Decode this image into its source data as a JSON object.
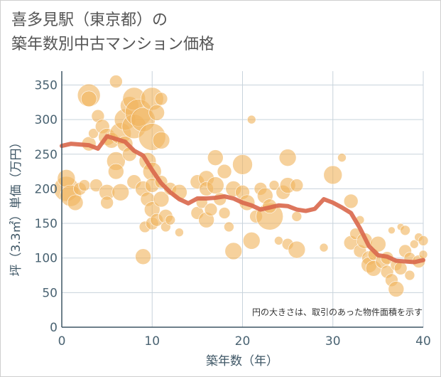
{
  "chart_data": {
    "type": "scatter",
    "title_line1": "喜多見駅（東京都）の",
    "title_line2": "築年数別中古マンション価格",
    "xlabel": "築年数（年）",
    "ylabel": "坪（3.3㎡）単価（万円）",
    "xlim": [
      0,
      40
    ],
    "ylim": [
      0,
      370
    ],
    "xticks": [
      "0",
      "10",
      "20",
      "30",
      "40"
    ],
    "yticks": [
      "0",
      "50",
      "100",
      "150",
      "200",
      "250",
      "300",
      "350"
    ],
    "xtick_values": [
      0,
      10,
      20,
      30,
      40
    ],
    "ytick_values": [
      0,
      50,
      100,
      150,
      200,
      250,
      300,
      350
    ],
    "annotation": "円の大きさは、取引のあった物件面積を示す",
    "grid": true,
    "colors": {
      "bubble": "#f0b55f",
      "trend": "#d9674b",
      "grid": "#c8d3dc",
      "axis": "#3e5665"
    },
    "series": [
      {
        "type": "scatter",
        "points": [
          {
            "x": 0.5,
            "y": 200,
            "s": 35
          },
          {
            "x": 0.5,
            "y": 215,
            "s": 25
          },
          {
            "x": 1,
            "y": 190,
            "s": 30
          },
          {
            "x": 1.5,
            "y": 180,
            "s": 22
          },
          {
            "x": 2,
            "y": 200,
            "s": 18
          },
          {
            "x": 2.5,
            "y": 205,
            "s": 16
          },
          {
            "x": 3,
            "y": 335,
            "s": 32
          },
          {
            "x": 3,
            "y": 330,
            "s": 22
          },
          {
            "x": 3,
            "y": 265,
            "s": 20
          },
          {
            "x": 3.5,
            "y": 280,
            "s": 14
          },
          {
            "x": 3.8,
            "y": 205,
            "s": 18
          },
          {
            "x": 4,
            "y": 305,
            "s": 18
          },
          {
            "x": 4.5,
            "y": 290,
            "s": 20
          },
          {
            "x": 5,
            "y": 275,
            "s": 24
          },
          {
            "x": 5,
            "y": 195,
            "s": 22
          },
          {
            "x": 5,
            "y": 180,
            "s": 18
          },
          {
            "x": 5.5,
            "y": 270,
            "s": 22
          },
          {
            "x": 6,
            "y": 355,
            "s": 18
          },
          {
            "x": 6,
            "y": 240,
            "s": 26
          },
          {
            "x": 6,
            "y": 225,
            "s": 22
          },
          {
            "x": 6.5,
            "y": 195,
            "s": 24
          },
          {
            "x": 6.5,
            "y": 280,
            "s": 30
          },
          {
            "x": 7,
            "y": 300,
            "s": 30
          },
          {
            "x": 7,
            "y": 265,
            "s": 22
          },
          {
            "x": 7.5,
            "y": 320,
            "s": 26
          },
          {
            "x": 7.5,
            "y": 250,
            "s": 20
          },
          {
            "x": 8,
            "y": 330,
            "s": 32
          },
          {
            "x": 8,
            "y": 290,
            "s": 34
          },
          {
            "x": 8,
            "y": 210,
            "s": 20
          },
          {
            "x": 8.5,
            "y": 310,
            "s": 38
          },
          {
            "x": 9,
            "y": 300,
            "s": 34
          },
          {
            "x": 9,
            "y": 200,
            "s": 22
          },
          {
            "x": 9,
            "y": 102,
            "s": 22
          },
          {
            "x": 9.2,
            "y": 145,
            "s": 16
          },
          {
            "x": 9.5,
            "y": 240,
            "s": 24
          },
          {
            "x": 9.5,
            "y": 185,
            "s": 20
          },
          {
            "x": 10,
            "y": 330,
            "s": 32
          },
          {
            "x": 10,
            "y": 275,
            "s": 38
          },
          {
            "x": 10,
            "y": 225,
            "s": 26
          },
          {
            "x": 10,
            "y": 205,
            "s": 20
          },
          {
            "x": 10,
            "y": 170,
            "s": 22
          },
          {
            "x": 10,
            "y": 150,
            "s": 18
          },
          {
            "x": 10.5,
            "y": 310,
            "s": 22
          },
          {
            "x": 10.5,
            "y": 155,
            "s": 18
          },
          {
            "x": 11,
            "y": 330,
            "s": 18
          },
          {
            "x": 11,
            "y": 270,
            "s": 24
          },
          {
            "x": 11,
            "y": 210,
            "s": 18
          },
          {
            "x": 11,
            "y": 185,
            "s": 22
          },
          {
            "x": 11.5,
            "y": 160,
            "s": 20
          },
          {
            "x": 11.5,
            "y": 145,
            "s": 14
          },
          {
            "x": 12,
            "y": 200,
            "s": 18
          },
          {
            "x": 12,
            "y": 155,
            "s": 14
          },
          {
            "x": 13,
            "y": 195,
            "s": 22
          },
          {
            "x": 13,
            "y": 137,
            "s": 12
          },
          {
            "x": 15,
            "y": 210,
            "s": 20
          },
          {
            "x": 15,
            "y": 165,
            "s": 18
          },
          {
            "x": 15.5,
            "y": 180,
            "s": 16
          },
          {
            "x": 16,
            "y": 215,
            "s": 22
          },
          {
            "x": 16,
            "y": 200,
            "s": 20
          },
          {
            "x": 16,
            "y": 155,
            "s": 22
          },
          {
            "x": 16.5,
            "y": 170,
            "s": 18
          },
          {
            "x": 17,
            "y": 245,
            "s": 22
          },
          {
            "x": 17,
            "y": 205,
            "s": 24
          },
          {
            "x": 17.5,
            "y": 185,
            "s": 18
          },
          {
            "x": 18,
            "y": 225,
            "s": 20
          },
          {
            "x": 18,
            "y": 165,
            "s": 16
          },
          {
            "x": 18.5,
            "y": 145,
            "s": 14
          },
          {
            "x": 19,
            "y": 200,
            "s": 22
          },
          {
            "x": 19,
            "y": 110,
            "s": 24
          },
          {
            "x": 20,
            "y": 235,
            "s": 28
          },
          {
            "x": 20,
            "y": 195,
            "s": 20
          },
          {
            "x": 20.5,
            "y": 180,
            "s": 22
          },
          {
            "x": 21,
            "y": 300,
            "s": 12
          },
          {
            "x": 21,
            "y": 125,
            "s": 24
          },
          {
            "x": 21.5,
            "y": 160,
            "s": 18
          },
          {
            "x": 22,
            "y": 200,
            "s": 18
          },
          {
            "x": 22.5,
            "y": 190,
            "s": 22
          },
          {
            "x": 23,
            "y": 160,
            "s": 38
          },
          {
            "x": 23,
            "y": 175,
            "s": 20
          },
          {
            "x": 23.5,
            "y": 205,
            "s": 14
          },
          {
            "x": 24,
            "y": 125,
            "s": 12
          },
          {
            "x": 24.5,
            "y": 195,
            "s": 20
          },
          {
            "x": 25,
            "y": 245,
            "s": 24
          },
          {
            "x": 25,
            "y": 205,
            "s": 22
          },
          {
            "x": 25,
            "y": 120,
            "s": 16
          },
          {
            "x": 26,
            "y": 205,
            "s": 18
          },
          {
            "x": 26,
            "y": 160,
            "s": 14
          },
          {
            "x": 26,
            "y": 112,
            "s": 24
          },
          {
            "x": 29,
            "y": 115,
            "s": 12
          },
          {
            "x": 30,
            "y": 220,
            "s": 26
          },
          {
            "x": 31,
            "y": 245,
            "s": 12
          },
          {
            "x": 32,
            "y": 182,
            "s": 20
          },
          {
            "x": 32,
            "y": 122,
            "s": 20
          },
          {
            "x": 32.5,
            "y": 135,
            "s": 16
          },
          {
            "x": 33,
            "y": 155,
            "s": 12
          },
          {
            "x": 33,
            "y": 110,
            "s": 18
          },
          {
            "x": 33.5,
            "y": 125,
            "s": 22
          },
          {
            "x": 34,
            "y": 100,
            "s": 20
          },
          {
            "x": 34,
            "y": 90,
            "s": 22
          },
          {
            "x": 34.5,
            "y": 85,
            "s": 22
          },
          {
            "x": 34.5,
            "y": 105,
            "s": 16
          },
          {
            "x": 35,
            "y": 120,
            "s": 22
          },
          {
            "x": 35.5,
            "y": 95,
            "s": 20
          },
          {
            "x": 36,
            "y": 100,
            "s": 18
          },
          {
            "x": 36,
            "y": 80,
            "s": 18
          },
          {
            "x": 36.5,
            "y": 68,
            "s": 18
          },
          {
            "x": 36.5,
            "y": 140,
            "s": 10
          },
          {
            "x": 37,
            "y": 55,
            "s": 22
          },
          {
            "x": 37,
            "y": 90,
            "s": 16
          },
          {
            "x": 37.5,
            "y": 145,
            "s": 10
          },
          {
            "x": 37.5,
            "y": 85,
            "s": 18
          },
          {
            "x": 38,
            "y": 140,
            "s": 14
          },
          {
            "x": 38,
            "y": 110,
            "s": 18
          },
          {
            "x": 38.5,
            "y": 100,
            "s": 16
          },
          {
            "x": 38.5,
            "y": 75,
            "s": 14
          },
          {
            "x": 39,
            "y": 120,
            "s": 12
          },
          {
            "x": 39.5,
            "y": 95,
            "s": 18
          },
          {
            "x": 39.5,
            "y": 130,
            "s": 12
          },
          {
            "x": 40,
            "y": 125,
            "s": 14
          },
          {
            "x": 40,
            "y": 105,
            "s": 12
          }
        ]
      },
      {
        "type": "line",
        "x": [
          0,
          1,
          2,
          3,
          4,
          5,
          6,
          7,
          8,
          9,
          10,
          11,
          12,
          13,
          14,
          15,
          16,
          17,
          18,
          19,
          20,
          21,
          22,
          23,
          24,
          25,
          26,
          27,
          28,
          29,
          30,
          31,
          32,
          33,
          34,
          35,
          36,
          37,
          38,
          39,
          40
        ],
        "y": [
          262,
          265,
          264,
          263,
          258,
          276,
          272,
          268,
          255,
          248,
          227,
          208,
          195,
          185,
          179,
          186,
          186,
          187,
          189,
          186,
          180,
          176,
          170,
          173,
          176,
          175,
          170,
          168,
          171,
          185,
          180,
          173,
          165,
          143,
          117,
          104,
          102,
          96,
          95,
          94,
          97
        ]
      }
    ]
  }
}
